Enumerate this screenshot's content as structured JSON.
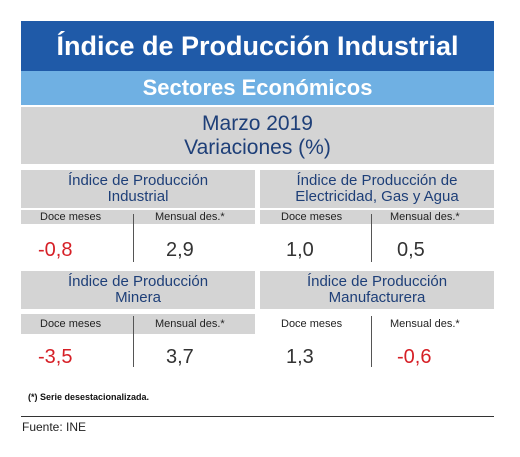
{
  "title": "Índice de Producción Industrial",
  "subtitle": "Sectores Económicos",
  "period": "Marzo 2019",
  "variations_label": "Variaciones (%)",
  "columns": {
    "annual": "Doce meses",
    "monthly": "Mensual des.*"
  },
  "cards": [
    {
      "name_line1": "Índice de Producción",
      "name_line2": "Industrial",
      "annual": "-0,8",
      "monthly": "2,9"
    },
    {
      "name_line1": "Índice de Producción de",
      "name_line2": "Electricidad, Gas y Agua",
      "annual": "1,0",
      "monthly": "0,5"
    },
    {
      "name_line1": "Índice de Producción",
      "name_line2": "Minera",
      "annual": "-3,5",
      "monthly": "3,7"
    },
    {
      "name_line1": "Índice de Producción",
      "name_line2": "Manufacturera",
      "annual": "1,3",
      "monthly": "-0,6"
    }
  ],
  "colors": {
    "title_bg": "#1f5aa8",
    "subtitle_bg": "#6fb0e3",
    "panel_bg": "#d4d4d4",
    "negative": "#d61f26"
  },
  "footnote": "(*)  Serie desestacionalizada.",
  "source": "Fuente: INE"
}
